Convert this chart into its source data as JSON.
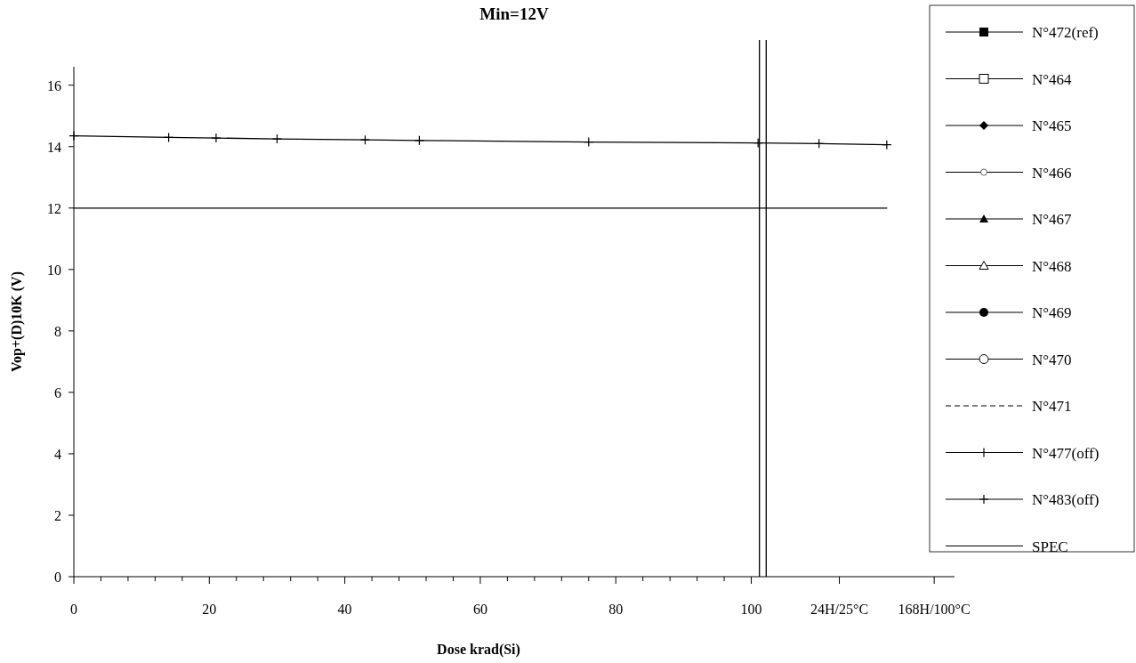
{
  "chart_data": {
    "type": "line",
    "title": "Min=12V",
    "xlabel": "Dose krad(Si)",
    "ylabel": "Vop+(D)10K (V)",
    "x": [
      0,
      14,
      21,
      30,
      43,
      51,
      76,
      101,
      110,
      120
    ],
    "xlim": [
      0,
      130
    ],
    "ylim": [
      0,
      16.6
    ],
    "xticks": [
      0,
      {
        "value": 4,
        "label": null
      },
      {
        "value": 8,
        "label": null
      },
      {
        "value": 12,
        "label": null
      },
      {
        "value": 16,
        "label": null
      },
      20,
      {
        "value": 24,
        "label": null
      },
      {
        "value": 28,
        "label": null
      },
      {
        "value": 32,
        "label": null
      },
      {
        "value": 36,
        "label": null
      },
      40,
      {
        "value": 44,
        "label": null
      },
      {
        "value": 48,
        "label": null
      },
      {
        "value": 52,
        "label": null
      },
      {
        "value": 56,
        "label": null
      },
      60,
      {
        "value": 64,
        "label": null
      },
      {
        "value": 68,
        "label": null
      },
      {
        "value": 72,
        "label": null
      },
      {
        "value": 76,
        "label": null
      },
      80,
      {
        "value": 84,
        "label": null
      },
      {
        "value": 88,
        "label": null
      },
      {
        "value": 92,
        "label": null
      },
      {
        "value": 96,
        "label": null
      },
      100,
      {
        "value": 113,
        "label": "24H/25°C"
      },
      {
        "value": 127,
        "label": "168H/100°C"
      }
    ],
    "yticks": [
      0,
      2,
      4,
      6,
      8,
      10,
      12,
      14,
      16
    ],
    "grid": false,
    "legend": "right",
    "ref_lines": [
      {
        "axis": "x",
        "value": 101.2,
        "color": "#000000"
      },
      {
        "axis": "x",
        "value": 102.2,
        "color": "#000000"
      }
    ],
    "series": [
      {
        "name": "N°472(ref)",
        "color": "#000000",
        "marker": "square",
        "values": [
          null,
          null,
          null,
          null,
          null,
          null,
          null,
          null,
          null,
          null
        ]
      },
      {
        "name": "N°464",
        "color": "#000000",
        "marker": "square-open",
        "values": [
          null,
          null,
          null,
          null,
          null,
          null,
          null,
          null,
          null,
          null
        ]
      },
      {
        "name": "N°465",
        "color": "#000000",
        "marker": "diamond",
        "values": [
          null,
          null,
          null,
          null,
          null,
          null,
          null,
          null,
          null,
          null
        ]
      },
      {
        "name": "N°466",
        "color": "#000000",
        "marker": "circle-small-open",
        "values": [
          null,
          null,
          null,
          null,
          null,
          null,
          null,
          null,
          null,
          null
        ]
      },
      {
        "name": "N°467",
        "color": "#000000",
        "marker": "triangle",
        "values": [
          null,
          null,
          null,
          null,
          null,
          null,
          null,
          null,
          null,
          null
        ]
      },
      {
        "name": "N°468",
        "color": "#000000",
        "marker": "triangle-open",
        "values": [
          null,
          null,
          null,
          null,
          null,
          null,
          null,
          null,
          null,
          null
        ]
      },
      {
        "name": "N°469",
        "color": "#000000",
        "marker": "circle",
        "values": [
          null,
          null,
          null,
          null,
          null,
          null,
          null,
          null,
          null,
          null
        ]
      },
      {
        "name": "N°470",
        "color": "#000000",
        "marker": "circle-open",
        "values": [
          null,
          null,
          null,
          null,
          null,
          null,
          null,
          null,
          null,
          null
        ]
      },
      {
        "name": "N°471",
        "color": "#000000",
        "marker": "none",
        "line_style": "dashed",
        "values": [
          null,
          null,
          null,
          null,
          null,
          null,
          null,
          null,
          null,
          null
        ]
      },
      {
        "name": "N°477(off)",
        "color": "#000000",
        "marker": "cross",
        "values": [
          null,
          null,
          null,
          null,
          null,
          null,
          null,
          null,
          null,
          null
        ]
      },
      {
        "name": "N°483(off)",
        "color": "#000000",
        "marker": "cross",
        "values": [
          14.35,
          14.3,
          14.28,
          14.25,
          14.22,
          14.2,
          14.15,
          14.12,
          14.1,
          14.06
        ]
      },
      {
        "name": "SPEC",
        "color": "#000000",
        "marker": "none",
        "x": [
          0,
          120
        ],
        "values": [
          12,
          12
        ]
      }
    ]
  }
}
